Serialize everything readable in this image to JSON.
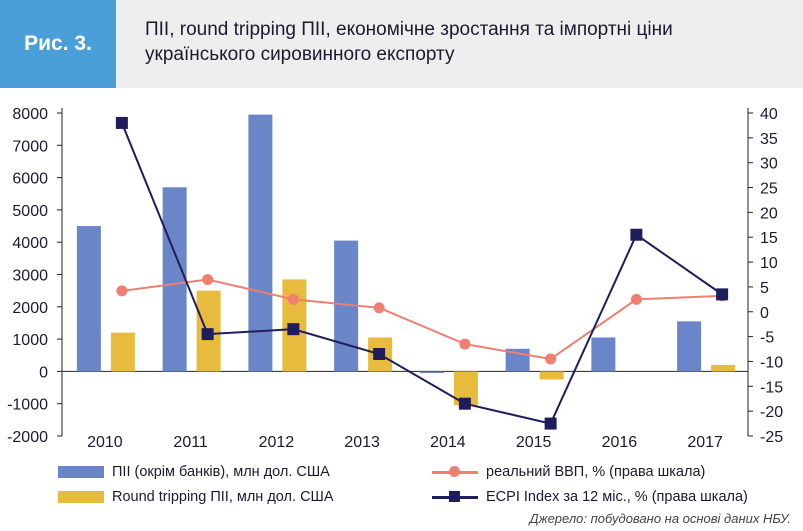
{
  "figure_label": "Рис. 3.",
  "title": "ПІІ, round tripping ПІІ, економічне зростання та імпортні ціни українського сировинного експорту",
  "source": "Джерело: побудовано на основі даних НБУ.",
  "colors": {
    "header_bg": "#eeeeee",
    "badge_bg": "#4a9fd8",
    "fdi": "#6a86c8",
    "round_tripping": "#e8bb3e",
    "gdp": "#f07f72",
    "ecpi": "#1f1d5c"
  },
  "chart_data": {
    "type": "bar",
    "categories": [
      "2010",
      "2011",
      "2012",
      "2013",
      "2014",
      "2015",
      "2016",
      "2017"
    ],
    "ylim": [
      -2000,
      8000
    ],
    "yticks": [
      "8000",
      "7000",
      "6000",
      "5000",
      "4000",
      "3000",
      "2000",
      "1000",
      "0",
      "-1000",
      "-2000"
    ],
    "y2lim": [
      -25,
      40
    ],
    "y2ticks": [
      "40",
      "35",
      "30",
      "25",
      "20",
      "15",
      "10",
      "5",
      "0",
      "-5",
      "-10",
      "-15",
      "-20",
      "-25"
    ],
    "grid": false,
    "legend_position": "bottom",
    "series": [
      {
        "name": "ПІІ (окрім банків), млн дол. США",
        "kind": "bar",
        "axis": "left",
        "values": [
          4500,
          5700,
          7950,
          4050,
          -50,
          700,
          1050,
          1550
        ]
      },
      {
        "name": "Round tripping ПІІ, млн дол. США",
        "kind": "bar",
        "axis": "left",
        "values": [
          1200,
          2500,
          2850,
          1050,
          -1050,
          -250,
          0,
          200
        ]
      },
      {
        "name": "реальний ВВП, % (права шкала)",
        "kind": "line",
        "axis": "right",
        "values": [
          4.2,
          6.5,
          2.5,
          0.8,
          -6.5,
          -9.5,
          2.5,
          3.2
        ]
      },
      {
        "name": "ECPI Index за 12 міс., % (права шкала)",
        "kind": "line",
        "axis": "right",
        "values": [
          38,
          -4.5,
          -3.5,
          -8.5,
          -18.5,
          -22.5,
          15.5,
          3.5
        ]
      }
    ]
  }
}
